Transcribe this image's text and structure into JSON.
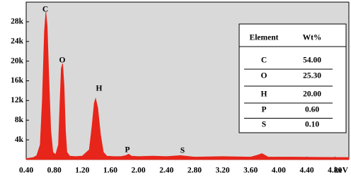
{
  "chart_data": {
    "type": "area",
    "x_label": "keV",
    "x": [
      0.4,
      0.5,
      0.55,
      0.6,
      0.63,
      0.66,
      0.68,
      0.7,
      0.72,
      0.75,
      0.78,
      0.82,
      0.86,
      0.88,
      0.9,
      0.92,
      0.94,
      0.96,
      0.98,
      1.02,
      1.1,
      1.2,
      1.3,
      1.34,
      1.37,
      1.39,
      1.42,
      1.46,
      1.5,
      1.55,
      1.65,
      1.75,
      1.82,
      1.86,
      1.9,
      2.0,
      2.2,
      2.4,
      2.6,
      2.8,
      3.2,
      3.6,
      3.7,
      3.76,
      3.85,
      4.2,
      4.6,
      5.0
    ],
    "values": [
      200,
      400,
      800,
      3000,
      12000,
      26000,
      30000,
      27000,
      18000,
      6000,
      1500,
      1000,
      3000,
      11000,
      18500,
      19500,
      15000,
      6000,
      1500,
      700,
      600,
      700,
      2000,
      7000,
      11500,
      12400,
      10500,
      5000,
      1500,
      700,
      600,
      600,
      800,
      1100,
      700,
      600,
      700,
      600,
      800,
      500,
      600,
      500,
      900,
      1200,
      500,
      500,
      450,
      400
    ],
    "color": "#e8251a",
    "xlim": [
      0.4,
      5.0
    ],
    "ylim": [
      0,
      32000
    ],
    "xticks": [
      {
        "value": 0.4,
        "label": "0.40"
      },
      {
        "value": 0.8,
        "label": "0.80"
      },
      {
        "value": 1.2,
        "label": "1.20"
      },
      {
        "value": 1.6,
        "label": "1.60"
      },
      {
        "value": 2.0,
        "label": "2.00"
      },
      {
        "value": 2.4,
        "label": "2.40"
      },
      {
        "value": 2.8,
        "label": "2.80"
      },
      {
        "value": 3.2,
        "label": "3.20"
      },
      {
        "value": 3.6,
        "label": "3.60"
      },
      {
        "value": 4.0,
        "label": "4.00"
      },
      {
        "value": 4.4,
        "label": "4.40"
      },
      {
        "value": 4.8,
        "label": "4.80"
      }
    ],
    "yticks": [
      {
        "value": 4000,
        "label": "4k"
      },
      {
        "value": 8000,
        "label": "8k"
      },
      {
        "value": 12000,
        "label": "12k"
      },
      {
        "value": 16000,
        "label": "16k"
      },
      {
        "value": 20000,
        "label": "20k"
      },
      {
        "value": 24000,
        "label": "24k"
      },
      {
        "value": 28000,
        "label": "28k"
      }
    ],
    "annotations": [
      "C",
      "O",
      "H",
      "P",
      "S"
    ],
    "table": {
      "headers": [
        "Element",
        "Wt%"
      ],
      "rows": [
        [
          "C",
          "54.00"
        ],
        [
          "O",
          "25.30"
        ],
        [
          "H",
          "20.00"
        ],
        [
          "P",
          "0.60"
        ],
        [
          "S",
          "0.10"
        ]
      ]
    }
  }
}
